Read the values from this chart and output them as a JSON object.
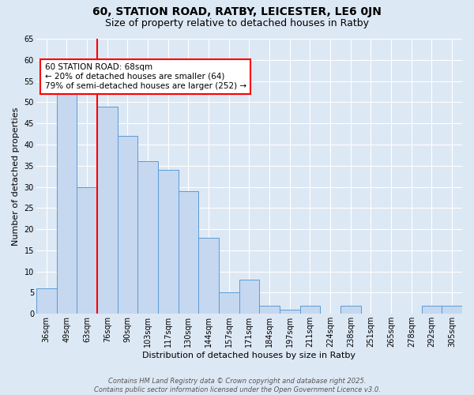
{
  "title": "60, STATION ROAD, RATBY, LEICESTER, LE6 0JN",
  "subtitle": "Size of property relative to detached houses in Ratby",
  "xlabel": "Distribution of detached houses by size in Ratby",
  "ylabel": "Number of detached properties",
  "categories": [
    "36sqm",
    "49sqm",
    "63sqm",
    "76sqm",
    "90sqm",
    "103sqm",
    "117sqm",
    "130sqm",
    "144sqm",
    "157sqm",
    "171sqm",
    "184sqm",
    "197sqm",
    "211sqm",
    "224sqm",
    "238sqm",
    "251sqm",
    "265sqm",
    "278sqm",
    "292sqm",
    "305sqm"
  ],
  "values": [
    6,
    53,
    30,
    49,
    42,
    36,
    34,
    29,
    18,
    5,
    8,
    2,
    1,
    2,
    0,
    2,
    0,
    0,
    0,
    2,
    2
  ],
  "bar_color": "#c5d8f0",
  "bar_edge_color": "#5b9bd5",
  "annotation_text_line1": "60 STATION ROAD: 68sqm",
  "annotation_text_line2": "← 20% of detached houses are smaller (64)",
  "annotation_text_line3": "79% of semi-detached houses are larger (252) →",
  "vline_index": 2.5,
  "vline_color": "red",
  "ylim": [
    0,
    65
  ],
  "yticks": [
    0,
    5,
    10,
    15,
    20,
    25,
    30,
    35,
    40,
    45,
    50,
    55,
    60,
    65
  ],
  "footnote_line1": "Contains HM Land Registry data © Crown copyright and database right 2025.",
  "footnote_line2": "Contains public sector information licensed under the Open Government Licence v3.0.",
  "background_color": "#dde8f5",
  "grid_color": "white",
  "title_fontsize": 10,
  "subtitle_fontsize": 9,
  "ylabel_fontsize": 8,
  "xlabel_fontsize": 8,
  "tick_fontsize": 7,
  "annot_fontsize": 7.5,
  "footnote_fontsize": 6
}
